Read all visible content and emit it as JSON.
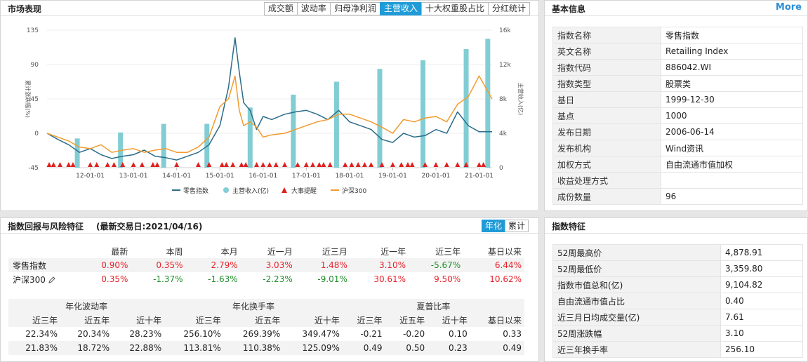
{
  "market": {
    "title": "市场表现",
    "tabs": [
      "成交额",
      "波动率",
      "归母净利润",
      "主营收入",
      "十大权重股占比",
      "分红统计"
    ],
    "active_tab": "主营收入"
  },
  "chart_data": {
    "type": "line",
    "left_axis": {
      "label": "累计涨跌幅(%)",
      "ticks": [
        "135",
        "90",
        "45",
        "0",
        "-45"
      ],
      "range": [
        -45,
        135
      ]
    },
    "right_axis": {
      "label": "主营收入(亿)",
      "ticks": [
        "16k",
        "12k",
        "8k",
        "4k",
        "0"
      ],
      "range": [
        0,
        16000
      ]
    },
    "x_ticks": [
      "12-01-01",
      "13-01-01",
      "14-01-01",
      "15-01-01",
      "16-01-01",
      "17-01-01",
      "18-01-01",
      "19-01-01",
      "20-01-01",
      "21-01-01"
    ],
    "x_range": [
      2011.0,
      2021.3
    ],
    "series": [
      {
        "name": "零售指数",
        "color": "#2b6c8a",
        "x": [
          2011.0,
          2011.25,
          2011.5,
          2011.75,
          2012.0,
          2012.25,
          2012.5,
          2012.75,
          2013.0,
          2013.25,
          2013.5,
          2013.75,
          2014.0,
          2014.25,
          2014.5,
          2014.75,
          2015.0,
          2015.2,
          2015.35,
          2015.45,
          2015.55,
          2015.7,
          2015.85,
          2016.0,
          2016.2,
          2016.5,
          2016.75,
          2017.0,
          2017.25,
          2017.5,
          2017.75,
          2018.0,
          2018.25,
          2018.5,
          2018.75,
          2019.0,
          2019.25,
          2019.5,
          2019.75,
          2020.0,
          2020.25,
          2020.5,
          2020.75,
          2021.0,
          2021.3
        ],
        "y": [
          0,
          -8,
          -15,
          -25,
          -20,
          -28,
          -33,
          -30,
          -28,
          -22,
          -30,
          -32,
          -35,
          -30,
          -25,
          -15,
          10,
          60,
          125,
          80,
          40,
          30,
          5,
          22,
          18,
          25,
          28,
          30,
          25,
          18,
          30,
          15,
          10,
          5,
          -8,
          -12,
          0,
          -5,
          -3,
          5,
          0,
          28,
          10,
          2,
          2
        ]
      },
      {
        "name": "沪深300",
        "color": "#f29b2f",
        "x": [
          2011.0,
          2011.25,
          2011.5,
          2011.75,
          2012.0,
          2012.25,
          2012.5,
          2012.75,
          2013.0,
          2013.25,
          2013.5,
          2013.75,
          2014.0,
          2014.25,
          2014.5,
          2014.75,
          2015.0,
          2015.2,
          2015.35,
          2015.45,
          2015.55,
          2015.7,
          2015.85,
          2016.0,
          2016.2,
          2016.5,
          2016.75,
          2017.0,
          2017.25,
          2017.5,
          2017.75,
          2018.0,
          2018.25,
          2018.5,
          2018.75,
          2019.0,
          2019.25,
          2019.5,
          2019.75,
          2020.0,
          2020.25,
          2020.5,
          2020.75,
          2021.0,
          2021.3
        ],
        "y": [
          0,
          -5,
          -10,
          -18,
          -20,
          -15,
          -25,
          -22,
          -20,
          -25,
          -22,
          -20,
          -25,
          -25,
          -18,
          -5,
          35,
          45,
          75,
          30,
          10,
          15,
          8,
          -5,
          -2,
          0,
          5,
          10,
          15,
          18,
          25,
          25,
          20,
          15,
          8,
          0,
          18,
          15,
          20,
          22,
          15,
          38,
          48,
          75,
          45
        ]
      },
      {
        "name": "主营收入(亿)",
        "color": "#82cdd4",
        "type": "bar",
        "x": [
          2011.7,
          2012.7,
          2013.7,
          2014.7,
          2015.7,
          2016.7,
          2017.7,
          2018.7,
          2019.7,
          2020.7,
          2021.2
        ],
        "y": [
          3400,
          4100,
          5100,
          5100,
          7000,
          8500,
          10000,
          11500,
          12500,
          13800,
          15000
        ]
      },
      {
        "name": "大事提醒",
        "color": "#e0201e",
        "type": "marker",
        "x": [
          2011.05,
          2011.15,
          2011.3,
          2011.5,
          2011.6,
          2012.0,
          2012.15,
          2012.4,
          2012.55,
          2012.75,
          2013.0,
          2013.2,
          2013.45,
          2013.55,
          2014.0,
          2014.5,
          2014.75,
          2015.05,
          2015.15,
          2015.3,
          2015.5,
          2015.6,
          2015.85,
          2016.0,
          2016.15,
          2016.3,
          2016.5,
          2016.8,
          2017.0,
          2017.15,
          2017.3,
          2017.4,
          2017.55,
          2017.9,
          2018.05,
          2018.2,
          2018.35,
          2018.5,
          2018.75,
          2019.0,
          2019.2,
          2019.35,
          2019.45,
          2019.75,
          2020.0,
          2020.25,
          2020.5,
          2020.7,
          2021.0,
          2021.1
        ]
      }
    ],
    "legend": [
      "零售指数",
      "主营收入(亿)",
      "大事提醒",
      "沪深300"
    ],
    "legend_position": "bottom"
  },
  "basic": {
    "title": "基本信息",
    "more": "More",
    "rows": [
      {
        "k": "指数名称",
        "v": "零售指数"
      },
      {
        "k": "英文名称",
        "v": "Retailing Index"
      },
      {
        "k": "指数代码",
        "v": "886042.WI"
      },
      {
        "k": "指数类型",
        "v": "股票类"
      },
      {
        "k": "基日",
        "v": "1999-12-30"
      },
      {
        "k": "基点",
        "v": "1000"
      },
      {
        "k": "发布日期",
        "v": "2006-06-14"
      },
      {
        "k": "发布机构",
        "v": "Wind资讯"
      },
      {
        "k": "加权方式",
        "v": "自由流通市值加权"
      },
      {
        "k": "收益处理方式",
        "v": ""
      },
      {
        "k": "成份数量",
        "v": "96"
      }
    ]
  },
  "returns": {
    "title": "指数回报与风险特征",
    "subtitle": "(最新交易日:2021/04/16)",
    "toggle": [
      "年化",
      "累计"
    ],
    "toggle_active": "年化",
    "headers": [
      "",
      "最新",
      "本周",
      "本月",
      "近一月",
      "近三月",
      "近一年",
      "近三年",
      "基日以来"
    ],
    "rows": [
      {
        "name": "零售指数",
        "values": [
          "0.90%",
          "0.35%",
          "2.79%",
          "3.03%",
          "1.48%",
          "3.10%",
          "-5.67%",
          "6.44%"
        ]
      },
      {
        "name": "沪深300",
        "values": [
          "0.35%",
          "-1.37%",
          "-1.63%",
          "-2.23%",
          "-9.01%",
          "30.61%",
          "9.50%",
          "10.62%"
        ]
      }
    ],
    "groups": [
      "年化波动率",
      "年化换手率",
      "夏普比率"
    ],
    "sub_headers": [
      "近三年",
      "近五年",
      "近十年",
      "近三年",
      "近五年",
      "近十年",
      "近三年",
      "近五年",
      "近十年",
      "基日以来"
    ],
    "risk_rows": [
      [
        "22.34%",
        "20.34%",
        "28.23%",
        "256.10%",
        "269.39%",
        "349.47%",
        "-0.21",
        "-0.20",
        "0.10",
        "0.33"
      ],
      [
        "21.83%",
        "18.72%",
        "22.88%",
        "113.81%",
        "110.38%",
        "125.09%",
        "0.49",
        "0.50",
        "0.23",
        "0.49"
      ]
    ]
  },
  "features": {
    "title": "指数特征",
    "rows": [
      {
        "k": "52周最高价",
        "v": "4,878.91"
      },
      {
        "k": "52周最低价",
        "v": "3,359.80"
      },
      {
        "k": "指数市值总和(亿)",
        "v": "9,104.82"
      },
      {
        "k": "自由流通市值占比",
        "v": "0.40"
      },
      {
        "k": "近三月日均成交量(亿)",
        "v": "7.61"
      },
      {
        "k": "52周涨跌幅",
        "v": "3.10"
      },
      {
        "k": "近三年换手率",
        "v": "256.10"
      }
    ]
  }
}
